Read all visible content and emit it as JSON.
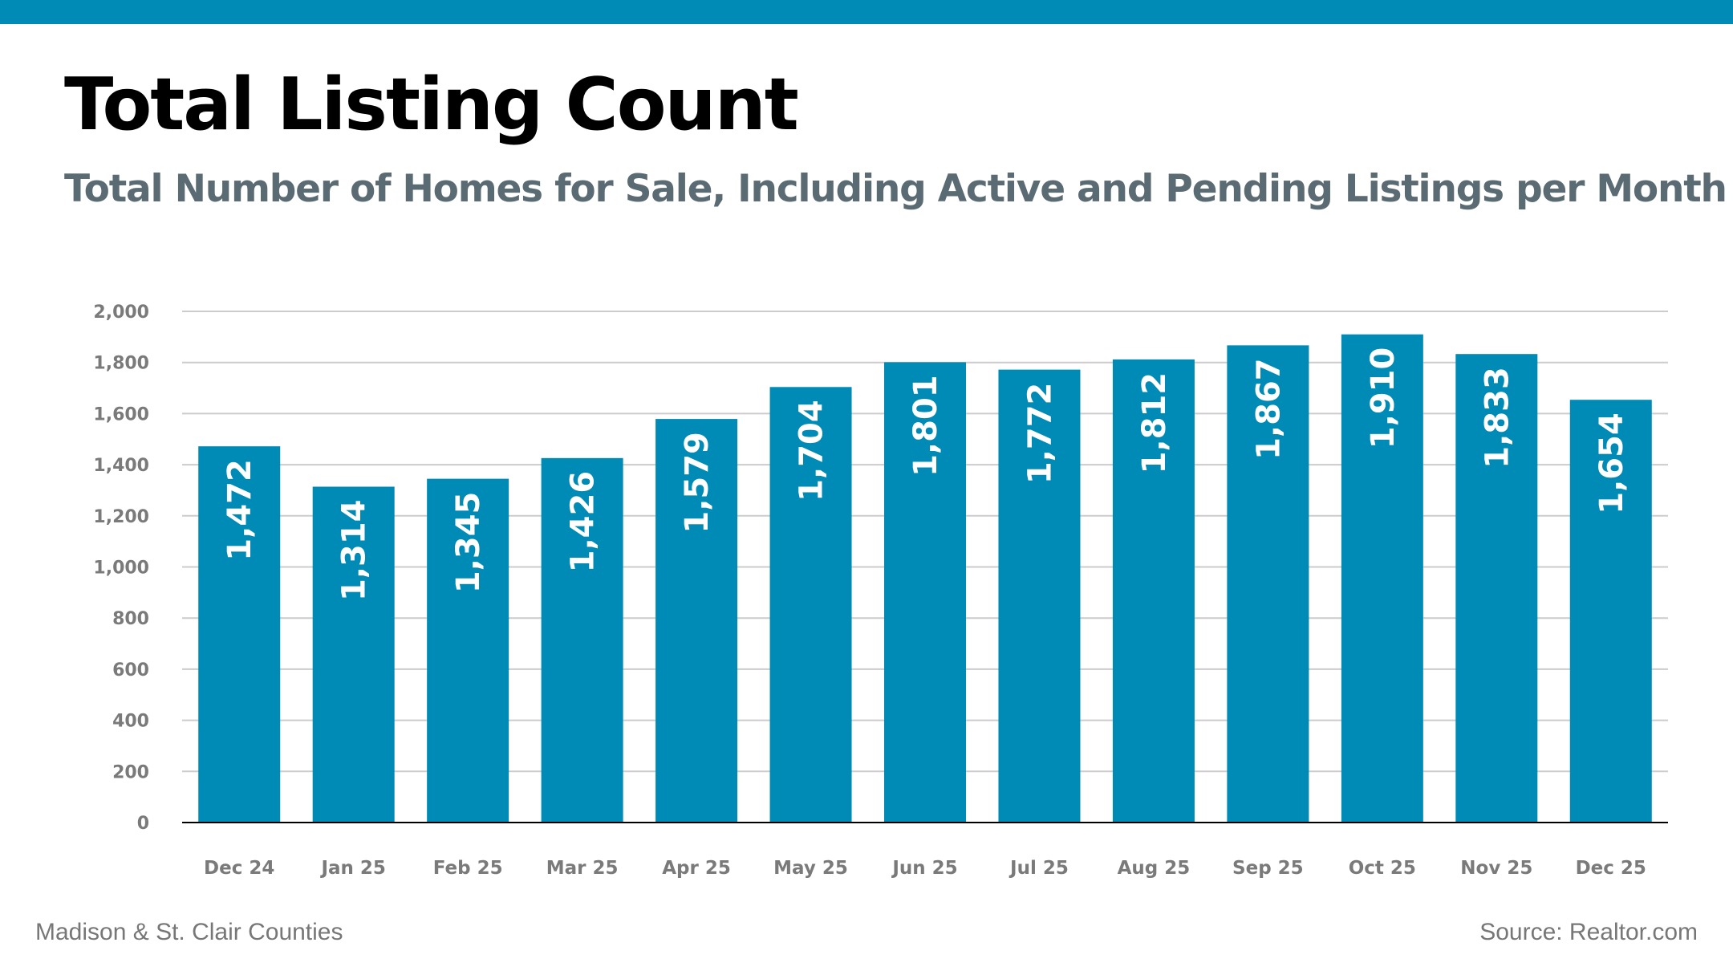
{
  "header": {
    "title": "Total Listing Count",
    "subtitle": "Total Number of Homes for Sale, Including Active and Pending Listings per Month"
  },
  "footer": {
    "left": "Madison & St. Clair Counties",
    "right": "Source: Realtor.com"
  },
  "colors": {
    "bar": "#008bb6",
    "accent": "#008bb6",
    "grid": "#cccccc",
    "axis": "#000000"
  },
  "chart_data": {
    "type": "bar",
    "title": "Total Listing Count",
    "subtitle": "Total Number of Homes for Sale, Including Active and Pending Listings per Month",
    "categories": [
      "Dec 24",
      "Jan 25",
      "Feb 25",
      "Mar 25",
      "Apr 25",
      "May 25",
      "Jun 25",
      "Jul 25",
      "Aug 25",
      "Sep 25",
      "Oct 25",
      "Nov 25",
      "Dec 25"
    ],
    "values": [
      1472,
      1314,
      1345,
      1426,
      1579,
      1704,
      1801,
      1772,
      1812,
      1867,
      1910,
      1833,
      1654
    ],
    "value_labels": [
      "1,472",
      "1,314",
      "1,345",
      "1,426",
      "1,579",
      "1,704",
      "1,801",
      "1,772",
      "1,812",
      "1,867",
      "1,910",
      "1,833",
      "1,654"
    ],
    "ylim": [
      0,
      2000
    ],
    "yticks": [
      0,
      200,
      400,
      600,
      800,
      1000,
      1200,
      1400,
      1600,
      1800,
      2000
    ],
    "ytick_labels": [
      "0",
      "200",
      "400",
      "600",
      "800",
      "1,000",
      "1,200",
      "1,400",
      "1,600",
      "1,800",
      "2,000"
    ],
    "grid": true,
    "legend": "none",
    "data_labels": "inside-top-rotated"
  }
}
